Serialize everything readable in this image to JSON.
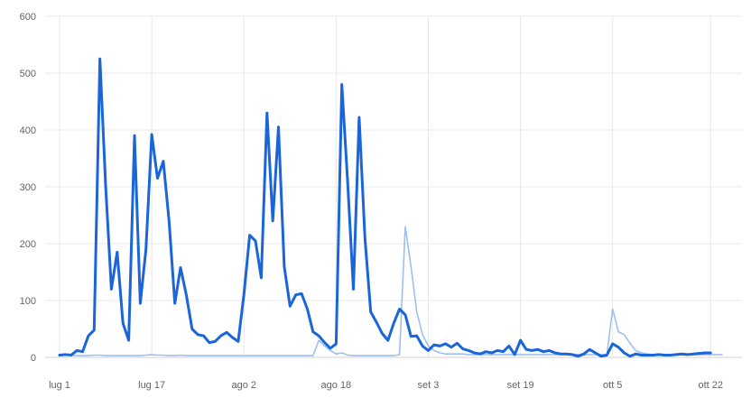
{
  "chart_data": {
    "type": "line",
    "title": "",
    "xlabel": "",
    "ylabel": "",
    "ylim": [
      0,
      600
    ],
    "yticks": [
      0,
      100,
      200,
      300,
      400,
      500,
      600
    ],
    "xlim": [
      0,
      115
    ],
    "xticks": [
      {
        "x": 0,
        "label": "lug 1"
      },
      {
        "x": 16,
        "label": "lug 17"
      },
      {
        "x": 32,
        "label": "ago 2"
      },
      {
        "x": 48,
        "label": "ago 18"
      },
      {
        "x": 64,
        "label": "set 3"
      },
      {
        "x": 80,
        "label": "set 19"
      },
      {
        "x": 96,
        "label": "ott 5"
      },
      {
        "x": 113,
        "label": "ott 22"
      }
    ],
    "grid": true,
    "legend": "none",
    "colors": {
      "primary": "#1a66d9",
      "secondary": "#9ec0ee",
      "grid": "#e8e8e8",
      "axis": "#d0d0d0"
    },
    "series": [
      {
        "values": [
          4,
          5,
          4,
          12,
          10,
          38,
          48,
          525,
          300,
          120,
          185,
          60,
          30,
          390,
          95,
          190,
          392,
          315,
          345,
          240,
          95,
          158,
          110,
          50,
          40,
          38,
          26,
          28,
          38,
          44,
          35,
          28,
          110,
          215,
          205,
          140,
          430,
          240,
          405,
          160,
          90,
          110,
          112,
          85,
          45,
          38,
          26,
          16,
          24,
          480,
          310,
          120,
          422,
          210,
          80,
          62,
          42,
          30,
          60,
          85,
          75,
          37,
          38,
          20,
          12,
          22,
          20,
          24,
          18,
          25,
          15,
          12,
          8,
          6,
          10,
          8,
          12,
          10,
          20,
          5,
          30,
          14,
          12,
          14,
          10,
          12,
          8,
          6,
          6,
          5,
          2,
          6,
          14,
          8,
          2,
          4,
          24,
          18,
          8,
          2,
          6,
          4,
          4,
          4,
          5,
          4,
          4,
          5,
          6,
          5,
          6,
          7,
          8,
          8
        ]
      },
      {
        "values": [
          4,
          5,
          4,
          3,
          3,
          3,
          4,
          4,
          3,
          3,
          3,
          3,
          3,
          3,
          3,
          4,
          5,
          4,
          4,
          3,
          3,
          4,
          3,
          3,
          3,
          3,
          3,
          3,
          3,
          3,
          3,
          3,
          3,
          3,
          3,
          3,
          3,
          3,
          3,
          3,
          3,
          3,
          3,
          3,
          3,
          30,
          20,
          12,
          6,
          8,
          4,
          3,
          3,
          3,
          3,
          3,
          3,
          3,
          3,
          5,
          230,
          160,
          80,
          40,
          20,
          12,
          8,
          6,
          6,
          6,
          6,
          5,
          5,
          5,
          5,
          5,
          5,
          5,
          5,
          5,
          5,
          5,
          5,
          5,
          5,
          5,
          5,
          5,
          5,
          5,
          5,
          5,
          5,
          5,
          5,
          5,
          85,
          45,
          40,
          25,
          12,
          8,
          6,
          5,
          5,
          5,
          5,
          5,
          5,
          5,
          5,
          5,
          5,
          5,
          5,
          5
        ]
      }
    ]
  }
}
